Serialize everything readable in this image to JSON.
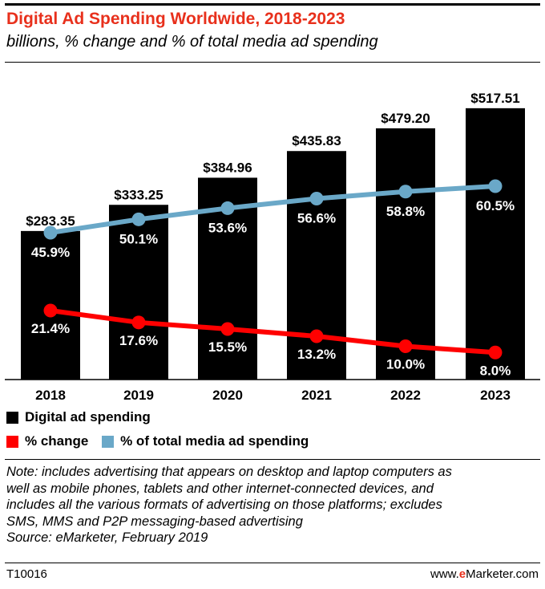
{
  "title": "Digital Ad Spending Worldwide, 2018-2023",
  "subtitle": "billions, % change and % of total media ad spending",
  "chart_data": {
    "type": "bar",
    "categories": [
      "2018",
      "2019",
      "2020",
      "2021",
      "2022",
      "2023"
    ],
    "series": [
      {
        "name": "Digital ad spending",
        "type": "bar",
        "values": [
          283.35,
          333.25,
          384.96,
          435.83,
          479.2,
          517.51
        ],
        "labels": [
          "$283.35",
          "$333.25",
          "$384.96",
          "$435.83",
          "$479.20",
          "$517.51"
        ],
        "color": "#000000"
      },
      {
        "name": "% change",
        "type": "line",
        "values": [
          21.4,
          17.6,
          15.5,
          13.2,
          10.0,
          8.0
        ],
        "labels": [
          "21.4%",
          "17.6%",
          "15.5%",
          "13.2%",
          "10.0%",
          "8.0%"
        ],
        "color": "#ff0000"
      },
      {
        "name": "% of total media ad spending",
        "type": "line",
        "values": [
          45.9,
          50.1,
          53.6,
          56.6,
          58.8,
          60.5
        ],
        "labels": [
          "45.9%",
          "50.1%",
          "53.6%",
          "56.6%",
          "58.8%",
          "60.5%"
        ],
        "color": "#6aa8c8"
      }
    ],
    "grid": false,
    "legend_position": "bottom-left"
  },
  "legend": {
    "bar_label": "Digital ad spending",
    "change_label": "% change",
    "share_label": "% of total media ad spending"
  },
  "note": {
    "lines": [
      "Note: includes advertising that appears on desktop and laptop computers as",
      "well as mobile phones, tablets and other internet-connected devices, and",
      "includes all the various formats of advertising on those platforms; excludes",
      "SMS, MMS and P2P messaging-based advertising",
      "Source: eMarketer, February 2019"
    ]
  },
  "footer": {
    "code": "T10016",
    "site_prefix": "www.",
    "site_brand": "e",
    "site_suffix": "Marketer.com"
  }
}
